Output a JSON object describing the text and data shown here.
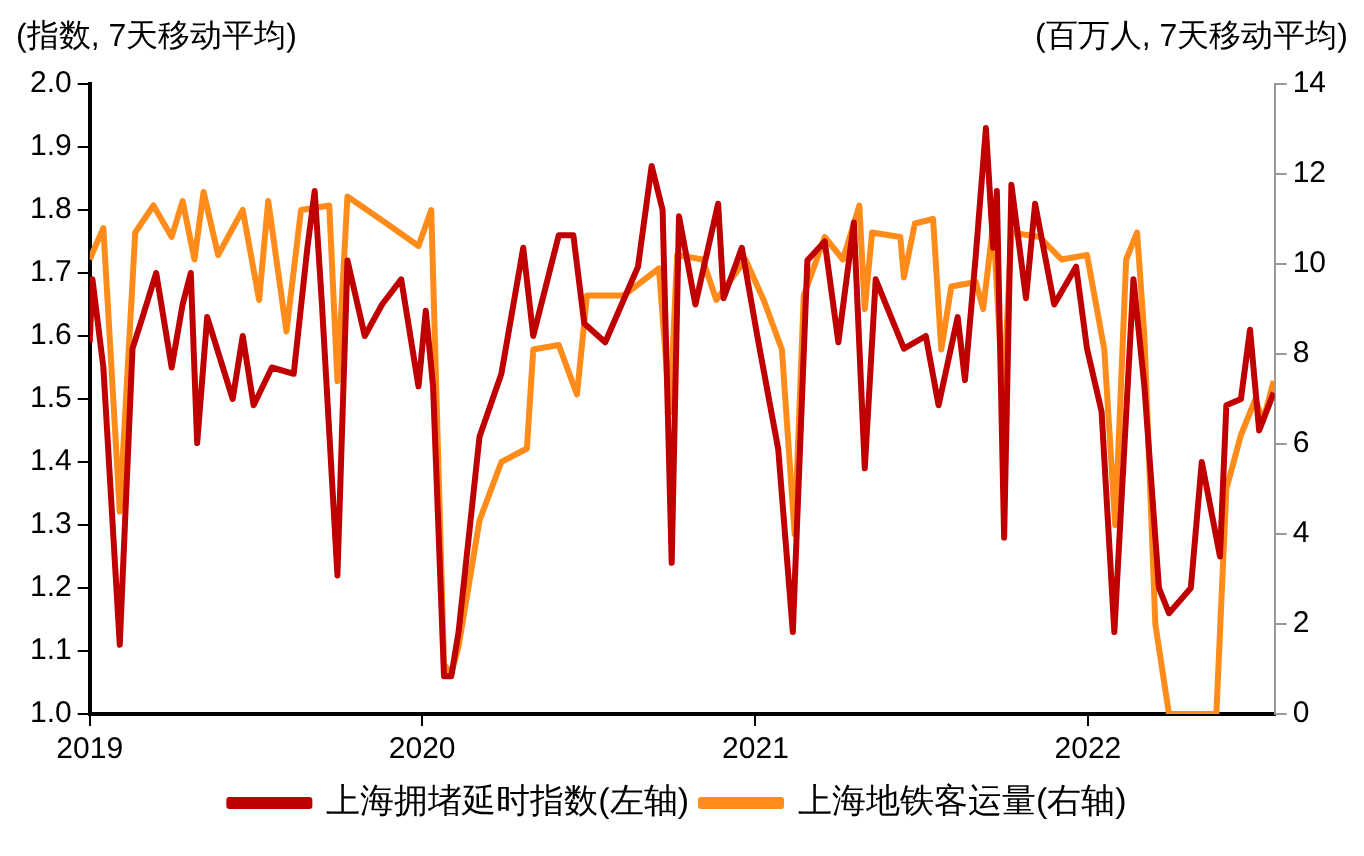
{
  "chart_data": {
    "type": "line",
    "ylabel": "(指数, 7天移动平均)",
    "y2label": "(百万人, 7天移动平均)",
    "xlim": [
      "2019-01-01",
      "2022-07-25"
    ],
    "xticks": [
      "2019",
      "2020",
      "2021",
      "2022"
    ],
    "ylim": [
      1,
      2
    ],
    "yticks": [
      {
        "value": 1,
        "label": "1.0"
      },
      {
        "value": 1.1,
        "label": "1.1"
      },
      {
        "value": 1.2,
        "label": "1.2"
      },
      {
        "value": 1.3,
        "label": "1.3"
      },
      {
        "value": 1.4,
        "label": "1.4"
      },
      {
        "value": 1.5,
        "label": "1.5"
      },
      {
        "value": 1.6,
        "label": "1.6"
      },
      {
        "value": 1.7,
        "label": "1.7"
      },
      {
        "value": 1.8,
        "label": "1.8"
      },
      {
        "value": 1.9,
        "label": "1.9"
      },
      {
        "value": 2,
        "label": "2.0"
      }
    ],
    "y2lim": [
      0,
      14
    ],
    "y2ticks": [
      0,
      2,
      4,
      6,
      8,
      10,
      12,
      14
    ],
    "grid": false,
    "legend": "bottom",
    "marker": "none",
    "line_style": "solid",
    "series": [
      {
        "name": "上海拥堵延时指数(左轴)",
        "color": "#c00000",
        "x": [
          "2019-01-01",
          "2019-01-04",
          "2019-01-16",
          "2019-02-03",
          "2019-02-17",
          "2019-02-28",
          "2019-03-15",
          "2019-04-01",
          "2019-04-13",
          "2019-04-22",
          "2019-04-29",
          "2019-05-10",
          "2019-06-07",
          "2019-06-18",
          "2019-06-30",
          "2019-07-20",
          "2019-08-13",
          "2019-08-28",
          "2019-09-05",
          "2019-09-13",
          "2019-09-30",
          "2019-10-11",
          "2019-10-30",
          "2019-11-18",
          "2019-12-09",
          "2019-12-28",
          "2020-01-05",
          "2020-01-13",
          "2020-01-25",
          "2020-02-02",
          "2020-02-10",
          "2020-03-04",
          "2020-03-28",
          "2020-04-09",
          "2020-04-21",
          "2020-05-02",
          "2020-05-30",
          "2020-06-15",
          "2020-06-27",
          "2020-07-20",
          "2020-08-25",
          "2020-09-09",
          "2020-09-21",
          "2020-10-01",
          "2020-10-09",
          "2020-10-27",
          "2020-11-21",
          "2020-11-27",
          "2020-12-17",
          "2021-01-03",
          "2021-01-26",
          "2021-02-11",
          "2021-02-27",
          "2021-03-18",
          "2021-04-02",
          "2021-04-19",
          "2021-05-01",
          "2021-05-13",
          "2021-06-13",
          "2021-07-07",
          "2021-07-21",
          "2021-08-11",
          "2021-08-19",
          "2021-08-31",
          "2021-09-11",
          "2021-09-19",
          "2021-09-23",
          "2021-10-01",
          "2021-10-09",
          "2021-10-25",
          "2021-11-04",
          "2021-11-25",
          "2021-12-19",
          "2021-12-31",
          "2022-01-16",
          "2022-01-30",
          "2022-02-20",
          "2022-03-04",
          "2022-03-20",
          "2022-03-31",
          "2022-04-24",
          "2022-05-06",
          "2022-05-26",
          "2022-06-02",
          "2022-06-18",
          "2022-06-28",
          "2022-07-08",
          "2022-07-24"
        ],
        "values": [
          1.59,
          1.69,
          1.55,
          1.11,
          1.58,
          1.63,
          1.7,
          1.55,
          1.65,
          1.7,
          1.43,
          1.63,
          1.5,
          1.6,
          1.49,
          1.55,
          1.54,
          1.74,
          1.83,
          1.65,
          1.22,
          1.72,
          1.6,
          1.65,
          1.69,
          1.52,
          1.64,
          1.52,
          1.06,
          1.06,
          1.13,
          1.44,
          1.54,
          1.64,
          1.74,
          1.6,
          1.76,
          1.76,
          1.62,
          1.59,
          1.71,
          1.87,
          1.8,
          1.24,
          1.79,
          1.65,
          1.81,
          1.66,
          1.74,
          1.6,
          1.42,
          1.13,
          1.72,
          1.75,
          1.59,
          1.78,
          1.39,
          1.69,
          1.58,
          1.6,
          1.49,
          1.63,
          1.53,
          1.73,
          1.93,
          1.74,
          1.83,
          1.28,
          1.84,
          1.66,
          1.81,
          1.65,
          1.71,
          1.58,
          1.48,
          1.13,
          1.69,
          1.52,
          1.2,
          1.16,
          1.2,
          1.4,
          1.25,
          1.49,
          1.5,
          1.61,
          1.45,
          1.51
        ]
      },
      {
        "name": "上海地铁客运量(右轴)",
        "color": "#ff8c1a",
        "axis": "y2",
        "x": [
          "2019-01-01",
          "2019-01-16",
          "2019-02-03",
          "2019-02-20",
          "2019-03-12",
          "2019-04-01",
          "2019-04-13",
          "2019-04-26",
          "2019-05-06",
          "2019-05-22",
          "2019-06-18",
          "2019-07-06",
          "2019-07-16",
          "2019-08-05",
          "2019-08-21",
          "2019-09-21",
          "2019-09-30",
          "2019-10-11",
          "2019-11-23",
          "2019-12-28",
          "2020-01-11",
          "2020-01-25",
          "2020-02-02",
          "2020-02-10",
          "2020-03-04",
          "2020-03-28",
          "2020-04-25",
          "2020-05-02",
          "2020-05-30",
          "2020-06-19",
          "2020-06-30",
          "2020-08-09",
          "2020-09-17",
          "2020-09-29",
          "2020-10-07",
          "2020-11-04",
          "2020-11-19",
          "2020-12-21",
          "2021-01-10",
          "2021-01-30",
          "2021-02-13",
          "2021-02-23",
          "2021-03-18",
          "2021-04-07",
          "2021-04-25",
          "2021-05-01",
          "2021-05-09",
          "2021-06-09",
          "2021-06-13",
          "2021-06-25",
          "2021-07-15",
          "2021-07-24",
          "2021-08-04",
          "2021-08-31",
          "2021-09-08",
          "2021-09-19",
          "2021-09-30",
          "2021-10-09",
          "2021-11-09",
          "2021-12-03",
          "2021-12-31",
          "2022-01-19",
          "2022-01-31",
          "2022-02-12",
          "2022-02-24",
          "2022-03-04",
          "2022-03-16",
          "2022-03-31",
          "2022-05-22",
          "2022-06-02",
          "2022-06-18",
          "2022-07-04",
          "2022-07-12",
          "2022-07-24"
        ],
        "values": [
          10.1,
          10.8,
          4.5,
          10.7,
          11.3,
          10.6,
          11.4,
          10.1,
          11.6,
          10.2,
          11.2,
          9.2,
          11.4,
          8.5,
          11.2,
          11.3,
          7.4,
          11.5,
          10.9,
          10.4,
          11.2,
          1.1,
          0.9,
          1.5,
          4.3,
          5.6,
          5.9,
          8.1,
          8.2,
          7.1,
          9.3,
          9.3,
          9.9,
          6.7,
          10.2,
          10.1,
          9.2,
          10.1,
          9.2,
          8.1,
          4.0,
          9.3,
          10.6,
          10.1,
          11.3,
          9.0,
          10.7,
          10.6,
          9.7,
          10.9,
          11.0,
          8.1,
          9.5,
          9.6,
          9.0,
          10.9,
          7.0,
          10.7,
          10.6,
          10.1,
          10.2,
          8.1,
          4.2,
          10.1,
          10.7,
          8.4,
          2.0,
          0,
          0,
          5.0,
          6.2,
          7.0,
          6.5,
          7.4
        ]
      }
    ]
  }
}
